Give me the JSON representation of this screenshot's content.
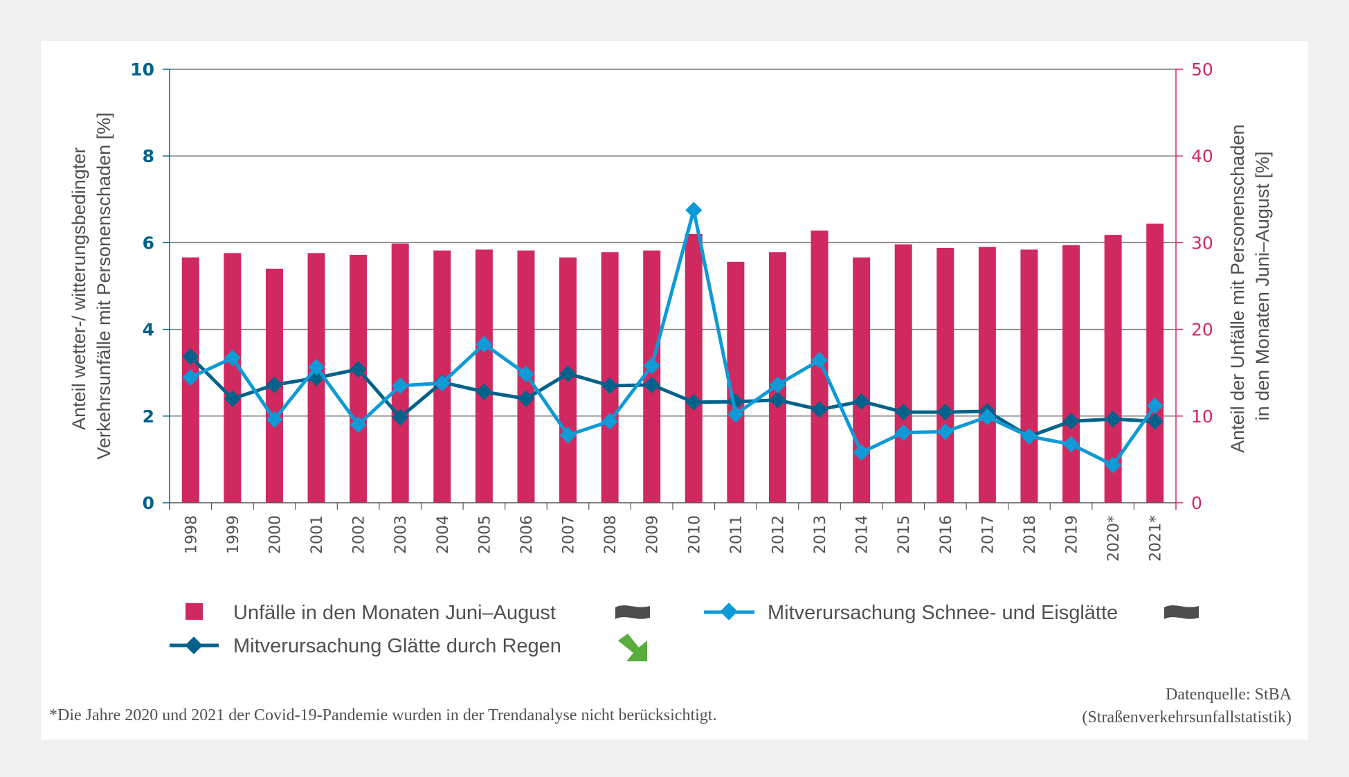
{
  "colors": {
    "bars": "#d0295f",
    "rain_line": "#00628b",
    "snow_line": "#0d9ad6",
    "left_axis": "#00628b",
    "right_axis": "#d0295f",
    "grid": "#777777",
    "text": "#505050",
    "trend_neutral": "#4d4d4d",
    "trend_down_good": "#58ad3c"
  },
  "chart_data": {
    "type": "bar+line",
    "title": "",
    "categories": [
      "1998",
      "1999",
      "2000",
      "2001",
      "2002",
      "2003",
      "2004",
      "2005",
      "2006",
      "2007",
      "2008",
      "2009",
      "2010",
      "2011",
      "2012",
      "2013",
      "2014",
      "2015",
      "2016",
      "2017",
      "2018",
      "2019",
      "2020*",
      "2021*"
    ],
    "left_axis": {
      "label": "Anteil wetter-/ witterungsbedingter Verkehrsunfälle mit Personenschaden [%]",
      "label_lines": [
        "Anteil wetter-/ witterungsbedingter",
        "Verkehrsunfälle mit Personenschaden [%]"
      ],
      "ylim": [
        0,
        10
      ],
      "ticks": [
        "0",
        "2",
        "4",
        "6",
        "8",
        "10"
      ]
    },
    "right_axis": {
      "label": "Anteil der Unfälle mit Personenschaden in den Monaten Juni–August [%]",
      "label_lines": [
        "Anteil der Unfälle mit Personenschaden",
        "in den Monaten Juni–August [%]"
      ],
      "ylim": [
        0,
        50
      ],
      "ticks": [
        "0",
        "10",
        "20",
        "30",
        "40",
        "50"
      ]
    },
    "grid": true,
    "series": [
      {
        "name": "Unfälle in den Monaten Juni–August",
        "type": "bar",
        "axis": "right",
        "trend": "neutral",
        "values": [
          28.3,
          28.8,
          27.0,
          28.8,
          28.6,
          29.9,
          29.1,
          29.2,
          29.1,
          28.3,
          28.9,
          29.1,
          31.0,
          27.8,
          28.9,
          31.4,
          28.3,
          29.8,
          29.4,
          29.5,
          29.2,
          29.7,
          30.9,
          32.2
        ]
      },
      {
        "name": "Mitverursachung Glätte durch Regen",
        "type": "line",
        "axis": "left",
        "trend": "down",
        "values": [
          3.37,
          2.4,
          2.72,
          2.88,
          3.08,
          1.97,
          2.78,
          2.56,
          2.4,
          2.98,
          2.7,
          2.72,
          2.32,
          2.33,
          2.37,
          2.15,
          2.34,
          2.09,
          2.09,
          2.11,
          1.53,
          1.88,
          1.93,
          1.88
        ]
      },
      {
        "name": "Mitverursachung Schnee- und Eisglätte",
        "type": "line",
        "axis": "left",
        "trend": "neutral",
        "values": [
          2.89,
          3.34,
          1.92,
          3.13,
          1.8,
          2.7,
          2.76,
          3.66,
          2.97,
          1.56,
          1.88,
          3.16,
          6.75,
          2.04,
          2.72,
          3.29,
          1.16,
          1.62,
          1.64,
          1.98,
          1.53,
          1.35,
          0.87,
          2.24
        ]
      }
    ],
    "legend": {
      "placement": "bottom",
      "items": [
        {
          "label": "Unfälle in den Monaten Juni–August",
          "marker": "square",
          "trend_icon": "wave-icon"
        },
        {
          "label": "Mitverursachung Schnee- und Eisglätte",
          "marker": "line-diamond-light",
          "trend_icon": "wave-icon"
        },
        {
          "label": "Mitverursachung Glätte durch Regen",
          "marker": "line-diamond-dark",
          "trend_icon": "arrow-down-right-icon"
        }
      ]
    }
  },
  "footnote": "*Die Jahre 2020 und 2021 der Covid-19-Pandemie wurden in der Trendanalyse nicht berücksichtigt.",
  "source": {
    "line1": "Datenquelle: StBA",
    "line2": "(Straßenverkehrsunfallstatistik)"
  }
}
